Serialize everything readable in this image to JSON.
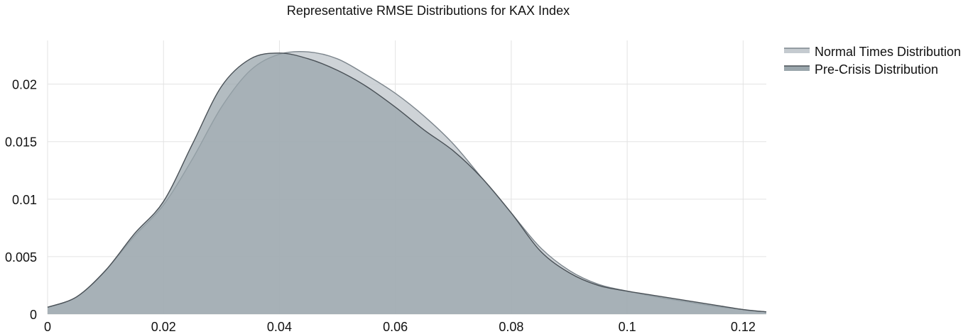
{
  "chart_data": {
    "type": "area",
    "title": "Representative RMSE Distributions for KAX Index",
    "xlabel": "",
    "ylabel": "",
    "xlim": [
      0,
      0.124
    ],
    "ylim": [
      0,
      0.0238
    ],
    "x_ticks": [
      0,
      0.02,
      0.04,
      0.06,
      0.08,
      0.1,
      0.12
    ],
    "x_tick_labels": [
      "0",
      "0.02",
      "0.04",
      "0.06",
      "0.08",
      "0.1",
      "0.12"
    ],
    "y_ticks": [
      0,
      0.005,
      0.01,
      0.015,
      0.02
    ],
    "y_tick_labels": [
      "0",
      "0.005",
      "0.01",
      "0.015",
      "0.02"
    ],
    "grid": true,
    "legend_position": "top-right",
    "series": [
      {
        "name": "Normal Times Distribution",
        "color": "#c5cbd0",
        "line_color": "#7d868d",
        "x": [
          0,
          0.005,
          0.01,
          0.015,
          0.02,
          0.025,
          0.03,
          0.035,
          0.04,
          0.045,
          0.05,
          0.055,
          0.06,
          0.065,
          0.07,
          0.075,
          0.08,
          0.085,
          0.09,
          0.095,
          0.1,
          0.105,
          0.11,
          0.115,
          0.12,
          0.124
        ],
        "y": [
          0.0006,
          0.0015,
          0.0038,
          0.0068,
          0.0095,
          0.0135,
          0.018,
          0.0212,
          0.0226,
          0.0228,
          0.0222,
          0.0208,
          0.0192,
          0.0172,
          0.0148,
          0.0118,
          0.0088,
          0.0058,
          0.0038,
          0.0026,
          0.002,
          0.0015,
          0.0011,
          0.0007,
          0.0004,
          0.0002
        ]
      },
      {
        "name": "Pre-Crisis Distribution",
        "color": "#9aa6ac",
        "line_color": "#4a5157",
        "x": [
          0,
          0.005,
          0.01,
          0.015,
          0.02,
          0.025,
          0.03,
          0.035,
          0.04,
          0.045,
          0.05,
          0.055,
          0.06,
          0.065,
          0.07,
          0.075,
          0.08,
          0.085,
          0.09,
          0.095,
          0.1,
          0.105,
          0.11,
          0.115,
          0.12,
          0.124
        ],
        "y": [
          0.0006,
          0.0015,
          0.0038,
          0.007,
          0.0098,
          0.0148,
          0.0198,
          0.0222,
          0.0227,
          0.0222,
          0.0212,
          0.0198,
          0.018,
          0.016,
          0.0142,
          0.0118,
          0.0088,
          0.0055,
          0.0036,
          0.0025,
          0.002,
          0.0016,
          0.0012,
          0.0008,
          0.0004,
          0.0002
        ]
      }
    ]
  }
}
